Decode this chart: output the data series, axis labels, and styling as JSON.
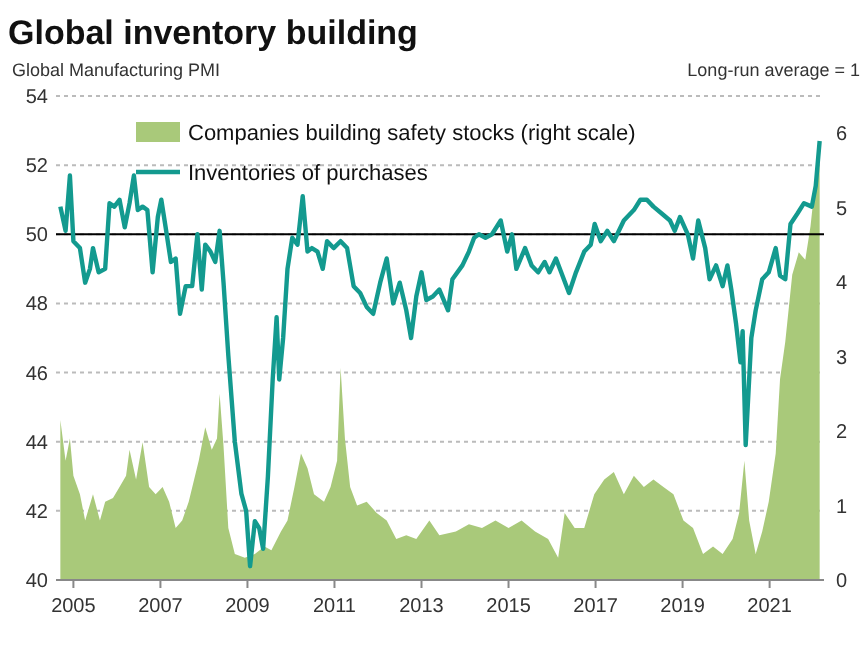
{
  "chart_data": {
    "type": "line",
    "title": "Global inventory building",
    "ylabel": "Global Manufacturing  PMI",
    "y2label": "Long-run average = 1",
    "xlim": [
      2004.6,
      2022.25
    ],
    "xticks": [
      {
        "value": 2005,
        "label": "2005"
      },
      {
        "value": 2007,
        "label": "2007"
      },
      {
        "value": 2009,
        "label": "2009"
      },
      {
        "value": 2011,
        "label": "2011"
      },
      {
        "value": 2013,
        "label": "2013"
      },
      {
        "value": 2015,
        "label": "2015"
      },
      {
        "value": 2017,
        "label": "2017"
      },
      {
        "value": 2019,
        "label": "2019"
      },
      {
        "value": 2021,
        "label": "2021"
      }
    ],
    "ylim": [
      40,
      54
    ],
    "yticks": [
      40,
      42,
      44,
      46,
      48,
      50,
      52,
      54
    ],
    "y2lim": [
      0,
      6.5
    ],
    "y2ticks": [
      0,
      1,
      2,
      3,
      4,
      5,
      6
    ],
    "grid": "y",
    "legend": "top left",
    "ref_lines": [
      {
        "axis": "y",
        "value": 50,
        "color": "#000000"
      }
    ],
    "series": [
      {
        "name": "Companies building safety stocks (right scale)",
        "type": "area",
        "axis": "y2",
        "color": "#a9c97a",
        "x": [
          2004.7,
          2004.82,
          2004.92,
          2005,
          2005.15,
          2005.27,
          2005.45,
          2005.61,
          2005.73,
          2005.91,
          2006.06,
          2006.21,
          2006.29,
          2006.44,
          2006.59,
          2006.74,
          2006.89,
          2007.05,
          2007.2,
          2007.35,
          2007.5,
          2007.65,
          2007.88,
          2008.03,
          2008.18,
          2008.3,
          2008.36,
          2008.45,
          2008.56,
          2008.71,
          2008.94,
          2009.17,
          2009.39,
          2009.55,
          2009.77,
          2009.92,
          2010.08,
          2010.23,
          2010.38,
          2010.53,
          2010.76,
          2010.91,
          2011.06,
          2011.14,
          2011.24,
          2011.36,
          2011.52,
          2011.74,
          2011.97,
          2012.2,
          2012.42,
          2012.65,
          2012.88,
          2013.18,
          2013.41,
          2013.79,
          2014.09,
          2014.39,
          2014.7,
          2015,
          2015.3,
          2015.61,
          2015.91,
          2016.14,
          2016.29,
          2016.52,
          2016.74,
          2016.97,
          2017.2,
          2017.42,
          2017.65,
          2017.88,
          2018.11,
          2018.33,
          2018.56,
          2018.79,
          2019.02,
          2019.24,
          2019.47,
          2019.7,
          2019.92,
          2020.15,
          2020.3,
          2020.42,
          2020.53,
          2020.68,
          2020.83,
          2020.98,
          2021.14,
          2021.24,
          2021.36,
          2021.52,
          2021.67,
          2021.82,
          2021.94,
          2022.05,
          2022.15
        ],
        "values": [
          2.15,
          1.6,
          1.9,
          1.4,
          1.15,
          0.8,
          1.15,
          0.8,
          1.05,
          1.1,
          1.25,
          1.4,
          1.75,
          1.35,
          1.85,
          1.25,
          1.15,
          1.25,
          1.05,
          0.7,
          0.8,
          1.05,
          1.6,
          2.05,
          1.75,
          1.9,
          2.5,
          1.8,
          0.7,
          0.35,
          0.3,
          0.35,
          0.45,
          0.4,
          0.65,
          0.8,
          1.25,
          1.7,
          1.5,
          1.15,
          1.05,
          1.25,
          1.6,
          2.85,
          1.9,
          1.25,
          1.0,
          1.05,
          0.9,
          0.8,
          0.55,
          0.6,
          0.55,
          0.8,
          0.6,
          0.65,
          0.75,
          0.7,
          0.8,
          0.7,
          0.8,
          0.65,
          0.55,
          0.3,
          0.9,
          0.7,
          0.7,
          1.15,
          1.35,
          1.45,
          1.15,
          1.4,
          1.25,
          1.35,
          1.25,
          1.15,
          0.8,
          0.7,
          0.35,
          0.45,
          0.35,
          0.55,
          0.9,
          1.6,
          0.8,
          0.35,
          0.65,
          1.05,
          1.7,
          2.7,
          3.2,
          4.1,
          4.4,
          4.3,
          4.75,
          5.35,
          5.9
        ]
      },
      {
        "name": "Inventories of purchases",
        "type": "line",
        "color": "#139a8f",
        "x": [
          2004.7,
          2004.82,
          2004.92,
          2005,
          2005.15,
          2005.27,
          2005.38,
          2005.45,
          2005.58,
          2005.73,
          2005.83,
          2005.94,
          2006.06,
          2006.18,
          2006.29,
          2006.39,
          2006.48,
          2006.59,
          2006.7,
          2006.82,
          2006.94,
          2007.02,
          2007.12,
          2007.24,
          2007.35,
          2007.45,
          2007.58,
          2007.73,
          2007.85,
          2007.95,
          2008.03,
          2008.15,
          2008.26,
          2008.36,
          2008.45,
          2008.56,
          2008.71,
          2008.86,
          2008.97,
          2009.06,
          2009.17,
          2009.27,
          2009.36,
          2009.47,
          2009.58,
          2009.67,
          2009.73,
          2009.82,
          2009.92,
          2010.03,
          2010.15,
          2010.27,
          2010.38,
          2010.48,
          2010.61,
          2010.73,
          2010.83,
          2010.98,
          2011.14,
          2011.29,
          2011.44,
          2011.59,
          2011.74,
          2011.89,
          2012.05,
          2012.2,
          2012.35,
          2012.5,
          2012.65,
          2012.76,
          2012.88,
          2013,
          2013.11,
          2013.26,
          2013.41,
          2013.61,
          2013.71,
          2013.94,
          2014.09,
          2014.21,
          2014.32,
          2014.47,
          2014.62,
          2014.82,
          2014.97,
          2015.08,
          2015.18,
          2015.38,
          2015.53,
          2015.68,
          2015.83,
          2015.94,
          2016.09,
          2016.21,
          2016.39,
          2016.55,
          2016.74,
          2016.89,
          2016.98,
          2017.12,
          2017.27,
          2017.42,
          2017.65,
          2017.88,
          2018.03,
          2018.18,
          2018.33,
          2018.52,
          2018.71,
          2018.82,
          2018.94,
          2019.12,
          2019.24,
          2019.36,
          2019.52,
          2019.62,
          2019.77,
          2019.92,
          2020.03,
          2020.12,
          2020.23,
          2020.33,
          2020.38,
          2020.45,
          2020.58,
          2020.68,
          2020.83,
          2020.98,
          2021.14,
          2021.24,
          2021.36,
          2021.48,
          2021.64,
          2021.79,
          2021.97,
          2022.06,
          2022.15
        ],
        "values": [
          50.8,
          50.1,
          51.7,
          49.8,
          49.6,
          48.6,
          49.0,
          49.6,
          48.9,
          49.0,
          50.9,
          50.8,
          51.0,
          50.2,
          50.9,
          51.7,
          50.7,
          50.8,
          50.7,
          48.9,
          50.5,
          51.0,
          50.2,
          49.2,
          49.3,
          47.7,
          48.5,
          48.5,
          50.0,
          48.4,
          49.7,
          49.5,
          49.2,
          50.1,
          48.6,
          46.5,
          44.0,
          42.5,
          42.0,
          40.4,
          41.7,
          41.5,
          40.9,
          43.0,
          45.8,
          47.6,
          45.8,
          47.0,
          49.0,
          49.9,
          49.7,
          51.1,
          49.5,
          49.6,
          49.5,
          49.0,
          49.8,
          49.6,
          49.8,
          49.6,
          48.5,
          48.3,
          47.9,
          47.7,
          48.6,
          49.3,
          48.0,
          48.6,
          47.8,
          47.0,
          48.2,
          48.9,
          48.1,
          48.2,
          48.4,
          47.8,
          48.7,
          49.1,
          49.5,
          49.9,
          50.0,
          49.9,
          50.0,
          50.4,
          49.5,
          50.0,
          49.0,
          49.6,
          49.1,
          48.9,
          49.2,
          48.9,
          49.3,
          48.9,
          48.3,
          48.9,
          49.5,
          49.7,
          50.3,
          49.8,
          50.1,
          49.8,
          50.4,
          50.7,
          51.0,
          51.0,
          50.8,
          50.6,
          50.4,
          50.1,
          50.5,
          50.0,
          49.3,
          50.4,
          49.6,
          48.7,
          49.1,
          48.5,
          49.1,
          48.4,
          47.4,
          46.3,
          47.2,
          43.9,
          47.0,
          47.8,
          48.7,
          48.9,
          49.6,
          48.8,
          48.7,
          50.3,
          50.6,
          50.9,
          50.8,
          51.4,
          52.7
        ]
      }
    ]
  }
}
